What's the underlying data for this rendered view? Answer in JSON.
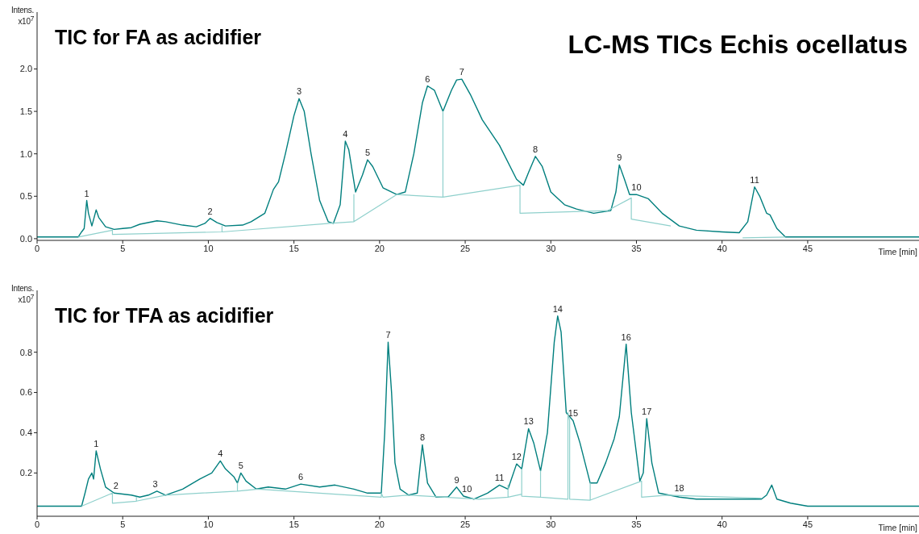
{
  "chart_data": [
    {
      "type": "line",
      "title": "LC-MS TICs Echis ocellatus",
      "subtitle": "TIC for FA as acidifier",
      "xlabel": "Time [min]",
      "ylabel": "Intens. x10$^{7}$",
      "xlim": [
        0,
        51.5
      ],
      "xticks": [
        0,
        5,
        10,
        15,
        20,
        25,
        30,
        35,
        40,
        45
      ],
      "ylim": [
        -0.02,
        2.67
      ],
      "yticks": [
        {
          "value": 0,
          "label": "0.0"
        },
        {
          "value": 0.5,
          "label": "0.5"
        },
        {
          "value": 1,
          "label": "1.0"
        },
        {
          "value": 1.5,
          "label": "1.5"
        },
        {
          "value": 2,
          "label": "2.0"
        }
      ],
      "series": [
        {
          "color": "#007f7e",
          "x": [
            0,
            2.4,
            2.6,
            2.75,
            2.9,
            3.0,
            3.2,
            3.45,
            3.6,
            4.0,
            4.5,
            5,
            5.5,
            6,
            7,
            7.5,
            8.5,
            9.3,
            9.8,
            10.1,
            10.5,
            11,
            12,
            12.5,
            13.3,
            13.8,
            14.1,
            14.5,
            15.0,
            15.3,
            15.6,
            16,
            16.5,
            17.0,
            17.3,
            17.7,
            18.0,
            18.2,
            18.6,
            19.0,
            19.3,
            19.6,
            20.2,
            21,
            21.5,
            22,
            22.5,
            22.8,
            23.2,
            23.7,
            24.2,
            24.5,
            24.8,
            25.3,
            26,
            27,
            28,
            28.4,
            28.7,
            29.1,
            29.5,
            30,
            30.8,
            31.5,
            32.5,
            33.5,
            33.8,
            34.0,
            34.3,
            34.6,
            35.0,
            35.7,
            36.5,
            37.5,
            38.5,
            40,
            41,
            41.5,
            41.9,
            42.2,
            42.6,
            42.8,
            43.2,
            43.7,
            45,
            51.5
          ],
          "values": [
            0.02,
            0.02,
            0.08,
            0.12,
            0.45,
            0.3,
            0.15,
            0.34,
            0.25,
            0.14,
            0.11,
            0.12,
            0.13,
            0.17,
            0.21,
            0.2,
            0.16,
            0.14,
            0.18,
            0.24,
            0.19,
            0.15,
            0.16,
            0.2,
            0.3,
            0.58,
            0.67,
            1.0,
            1.45,
            1.65,
            1.5,
            1.0,
            0.45,
            0.2,
            0.18,
            0.4,
            1.15,
            1.05,
            0.55,
            0.75,
            0.93,
            0.85,
            0.6,
            0.52,
            0.55,
            1.0,
            1.6,
            1.8,
            1.75,
            1.5,
            1.75,
            1.87,
            1.88,
            1.7,
            1.4,
            1.1,
            0.7,
            0.63,
            0.78,
            0.97,
            0.85,
            0.55,
            0.4,
            0.35,
            0.3,
            0.33,
            0.55,
            0.87,
            0.7,
            0.52,
            0.52,
            0.47,
            0.3,
            0.15,
            0.1,
            0.08,
            0.07,
            0.2,
            0.61,
            0.5,
            0.3,
            0.28,
            0.12,
            0.02,
            0.02,
            0.02
          ]
        },
        {
          "color": "#8fd0cc",
          "x": [
            2.4,
            4.4,
            4.4,
            10.8,
            10.8,
            10.8,
            17.1,
            18.5,
            18.5,
            18.5,
            21.0,
            23.7,
            23.7,
            23.7,
            28.2,
            28.2,
            33.3,
            34.7,
            34.7,
            37.0
          ],
          "values": [
            0.02,
            0.1,
            0.05,
            0.08,
            0.15,
            0.08,
            0.18,
            0.2,
            0.52,
            0.2,
            0.52,
            0.49,
            1.5,
            0.49,
            0.63,
            0.3,
            0.33,
            0.48,
            0.23,
            0.15
          ]
        },
        {
          "color": "#8fd0cc",
          "x": [
            41.2,
            43.7
          ],
          "values": [
            0.01,
            0.02
          ]
        }
      ],
      "annotations": [
        {
          "text": "1",
          "x": 2.9,
          "y": 0.45
        },
        {
          "text": "2",
          "x": 10.1,
          "y": 0.24
        },
        {
          "text": "3",
          "x": 15.3,
          "y": 1.65
        },
        {
          "text": "4",
          "x": 18.0,
          "y": 1.15
        },
        {
          "text": "5",
          "x": 19.3,
          "y": 0.93
        },
        {
          "text": "6",
          "x": 22.8,
          "y": 1.8
        },
        {
          "text": "7",
          "x": 24.8,
          "y": 1.88
        },
        {
          "text": "8",
          "x": 29.1,
          "y": 0.97
        },
        {
          "text": "9",
          "x": 34.0,
          "y": 0.87
        },
        {
          "text": "10",
          "x": 35.0,
          "y": 0.52
        },
        {
          "text": "11",
          "x": 41.9,
          "y": 0.61
        }
      ]
    },
    {
      "type": "line",
      "subtitle": "TIC for TFA as acidifier",
      "xlabel": "Time [min]",
      "ylabel": "Intens. x10$^{7}$",
      "xlim": [
        0,
        51.5
      ],
      "xticks": [
        0,
        5,
        10,
        15,
        20,
        25,
        30,
        35,
        40,
        45
      ],
      "ylim": [
        -0.015,
        1.107
      ],
      "yticks": [
        0.2,
        0.4,
        0.6,
        0.8
      ],
      "series": [
        {
          "color": "#007f7e",
          "x": [
            0,
            2.6,
            2.8,
            3.0,
            3.2,
            3.3,
            3.45,
            3.7,
            4.0,
            4.5,
            5.5,
            6,
            6.5,
            7.0,
            7.5,
            8.5,
            9.5,
            10.2,
            10.7,
            11.0,
            11.5,
            11.7,
            11.9,
            12.2,
            12.8,
            13.5,
            14.5,
            15.4,
            16.5,
            17.4,
            18.5,
            19.3,
            20.1,
            20.3,
            20.5,
            20.7,
            20.9,
            21.2,
            21.7,
            22.2,
            22.5,
            22.8,
            23.3,
            24.0,
            24.5,
            24.9,
            25.5,
            26.3,
            27.0,
            27.5,
            28.0,
            28.3,
            28.7,
            29.0,
            29.4,
            29.8,
            30.2,
            30.4,
            30.6,
            30.9,
            31.3,
            31.7,
            32.3,
            32.7,
            33.2,
            33.7,
            34.0,
            34.4,
            34.7,
            35.2,
            35.4,
            35.6,
            35.9,
            36.3,
            37.5,
            38.5,
            39.5,
            42.3,
            42.6,
            42.9,
            43.2,
            44,
            45,
            51.5
          ],
          "values": [
            0.035,
            0.035,
            0.1,
            0.17,
            0.2,
            0.17,
            0.31,
            0.22,
            0.13,
            0.1,
            0.09,
            0.08,
            0.09,
            0.11,
            0.09,
            0.12,
            0.17,
            0.2,
            0.26,
            0.22,
            0.18,
            0.15,
            0.2,
            0.16,
            0.12,
            0.13,
            0.12,
            0.145,
            0.13,
            0.14,
            0.12,
            0.1,
            0.1,
            0.4,
            0.85,
            0.6,
            0.25,
            0.12,
            0.09,
            0.1,
            0.34,
            0.15,
            0.08,
            0.08,
            0.13,
            0.085,
            0.07,
            0.1,
            0.14,
            0.12,
            0.245,
            0.22,
            0.42,
            0.35,
            0.21,
            0.4,
            0.85,
            0.98,
            0.9,
            0.5,
            0.46,
            0.35,
            0.15,
            0.15,
            0.25,
            0.37,
            0.48,
            0.84,
            0.5,
            0.16,
            0.2,
            0.47,
            0.25,
            0.1,
            0.08,
            0.07,
            0.07,
            0.07,
            0.09,
            0.14,
            0.07,
            0.05,
            0.035,
            0.035
          ]
        },
        {
          "color": "#8fd0cc",
          "x": [
            2.6,
            4.4,
            4.4,
            5.8,
            5.8,
            5.8,
            7.5,
            11.7,
            11.7,
            11.7,
            12.9,
            20.1,
            20.1,
            20.2,
            21.6,
            23.8,
            25.8,
            27.5,
            27.5,
            27.5,
            28.3,
            28.3,
            28.3,
            29.4,
            29.4,
            29.4,
            31.0,
            31.0,
            31.1,
            31.1,
            32.3,
            32.3,
            32.3,
            35.3,
            35.3,
            35.3,
            36.8,
            42.3
          ],
          "values": [
            0.035,
            0.1,
            0.05,
            0.06,
            0.08,
            0.06,
            0.09,
            0.11,
            0.15,
            0.11,
            0.12,
            0.08,
            0.1,
            0.08,
            0.09,
            0.08,
            0.07,
            0.08,
            0.14,
            0.08,
            0.095,
            0.22,
            0.085,
            0.08,
            0.21,
            0.08,
            0.07,
            0.5,
            0.46,
            0.07,
            0.065,
            0.15,
            0.065,
            0.16,
            0.08,
            0.08,
            0.09,
            0.075
          ]
        }
      ],
      "annotations": [
        {
          "text": "1",
          "x": 3.45,
          "y": 0.31
        },
        {
          "text": "2",
          "x": 4.6,
          "y": 0.1
        },
        {
          "text": "3",
          "x": 6.9,
          "y": 0.11
        },
        {
          "text": "4",
          "x": 10.7,
          "y": 0.26
        },
        {
          "text": "5",
          "x": 11.9,
          "y": 0.2
        },
        {
          "text": "6",
          "x": 15.4,
          "y": 0.145
        },
        {
          "text": "7",
          "x": 20.5,
          "y": 0.85
        },
        {
          "text": "8",
          "x": 22.5,
          "y": 0.34
        },
        {
          "text": "9",
          "x": 24.5,
          "y": 0.13
        },
        {
          "text": "10",
          "x": 25.1,
          "y": 0.085
        },
        {
          "text": "11",
          "x": 27.0,
          "y": 0.14
        },
        {
          "text": "12",
          "x": 28.0,
          "y": 0.245
        },
        {
          "text": "13",
          "x": 28.7,
          "y": 0.42
        },
        {
          "text": "14",
          "x": 30.4,
          "y": 0.98
        },
        {
          "text": "15",
          "x": 31.3,
          "y": 0.46
        },
        {
          "text": "16",
          "x": 34.4,
          "y": 0.84
        },
        {
          "text": "17",
          "x": 35.6,
          "y": 0.47
        },
        {
          "text": "18",
          "x": 37.5,
          "y": 0.09
        }
      ]
    }
  ]
}
